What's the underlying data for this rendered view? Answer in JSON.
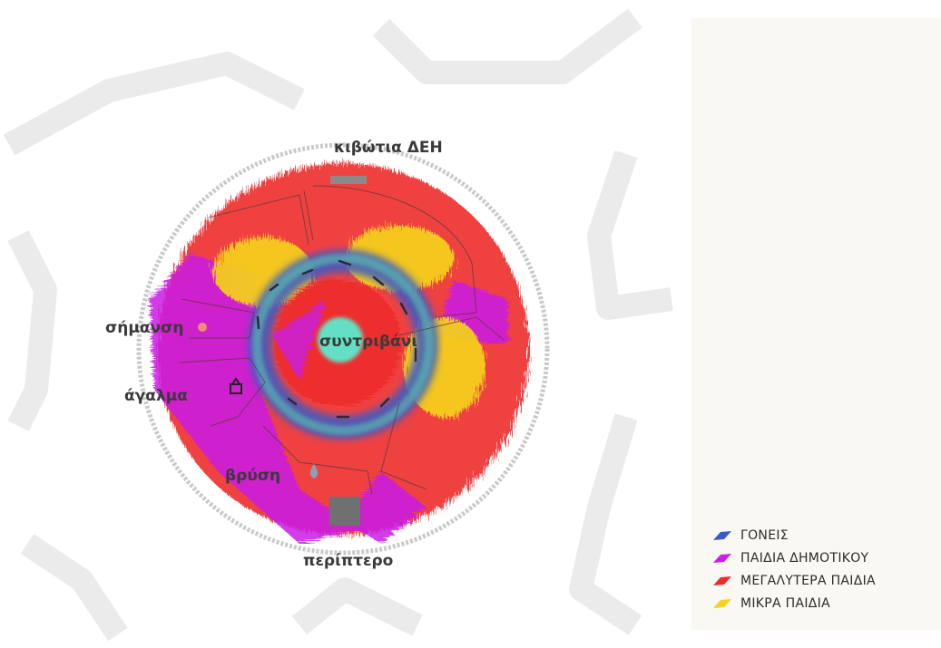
{
  "labels": {
    "power_boxes": "κιβώτια ΔΕΗ",
    "sign": "σήμανση",
    "statue": "άγαλμα",
    "fountain": "συντριβάνι",
    "drinking_fountain": "βρύση",
    "kiosk": "περίπτερο"
  },
  "legend": [
    {
      "label": "ΓΟΝΕΙΣ",
      "color": "#3b5bc4"
    },
    {
      "label": "ΠΑΙΔΙΑ ΔΗΜΟΤΙΚΟΥ",
      "color": "#c81ee6"
    },
    {
      "label": "ΜΕΓΑΛΥΤΕΡΑ ΠΑΙΔΙΑ",
      "color": "#ee2b2b"
    },
    {
      "label": "ΜΙΚΡΑ ΠΑΙΔΙΑ",
      "color": "#f5d21e"
    }
  ],
  "colors": {
    "fountain": "#64e0c4",
    "kiosk": "#707070",
    "power_boxes": "#8a8a8a",
    "sign": "#f28a7a",
    "drinking_fountain": "#8aa0b8"
  }
}
